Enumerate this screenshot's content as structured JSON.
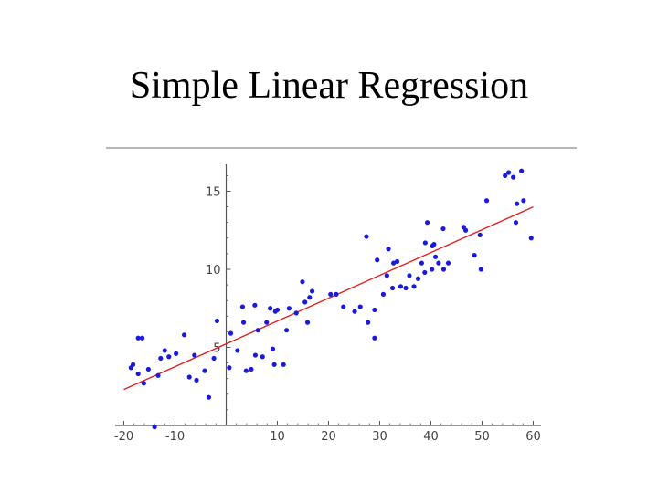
{
  "slide": {
    "title": "Simple Linear Regression"
  },
  "chart_data": {
    "type": "scatter",
    "title": "",
    "xlabel": "",
    "ylabel": "",
    "xlim": [
      -20,
      60
    ],
    "ylim": [
      0,
      16.5
    ],
    "xticks": [
      -20,
      -10,
      10,
      20,
      30,
      40,
      50,
      60
    ],
    "yticks": [
      5,
      10,
      15
    ],
    "grid": false,
    "colors": {
      "points": "#1a1adb",
      "fit": "#e02020",
      "axes": "#555555"
    },
    "series": [
      {
        "type": "scatter",
        "points": [
          [
            -18.2,
            3.9
          ],
          [
            -18.6,
            3.7
          ],
          [
            -17.2,
            3.3
          ],
          [
            -17.2,
            5.6
          ],
          [
            -16.4,
            5.6
          ],
          [
            -16.1,
            2.7
          ],
          [
            -15.2,
            3.6
          ],
          [
            -14.0,
            -0.1
          ],
          [
            -13.3,
            3.2
          ],
          [
            -12.8,
            4.3
          ],
          [
            -12.0,
            4.8
          ],
          [
            -11.2,
            4.4
          ],
          [
            -9.8,
            4.6
          ],
          [
            -8.2,
            5.8
          ],
          [
            -7.2,
            3.1
          ],
          [
            -6.2,
            4.5
          ],
          [
            -5.8,
            2.9
          ],
          [
            -4.2,
            3.5
          ],
          [
            -3.4,
            1.8
          ],
          [
            -2.4,
            4.3
          ],
          [
            -1.8,
            6.7
          ],
          [
            0.6,
            3.7
          ],
          [
            0.9,
            5.9
          ],
          [
            2.2,
            4.8
          ],
          [
            3.2,
            7.6
          ],
          [
            3.4,
            6.6
          ],
          [
            3.9,
            3.5
          ],
          [
            4.9,
            3.6
          ],
          [
            5.7,
            4.5
          ],
          [
            5.6,
            7.7
          ],
          [
            6.2,
            6.1
          ],
          [
            7.1,
            4.4
          ],
          [
            7.9,
            6.6
          ],
          [
            8.6,
            7.5
          ],
          [
            9.1,
            4.9
          ],
          [
            9.4,
            3.9
          ],
          [
            9.6,
            7.3
          ],
          [
            10.0,
            7.4
          ],
          [
            11.2,
            3.9
          ],
          [
            11.8,
            6.1
          ],
          [
            12.3,
            7.5
          ],
          [
            13.7,
            7.2
          ],
          [
            14.9,
            9.2
          ],
          [
            15.4,
            7.9
          ],
          [
            15.9,
            6.6
          ],
          [
            16.8,
            8.6
          ],
          [
            16.3,
            8.2
          ],
          [
            20.4,
            8.4
          ],
          [
            21.5,
            8.4
          ],
          [
            22.9,
            7.6
          ],
          [
            25.1,
            7.3
          ],
          [
            26.2,
            7.6
          ],
          [
            27.4,
            12.1
          ],
          [
            27.7,
            6.6
          ],
          [
            29.0,
            5.6
          ],
          [
            29.5,
            10.6
          ],
          [
            29.0,
            7.4
          ],
          [
            30.7,
            8.4
          ],
          [
            31.4,
            9.6
          ],
          [
            31.7,
            11.3
          ],
          [
            32.7,
            10.4
          ],
          [
            32.5,
            8.8
          ],
          [
            33.4,
            10.5
          ],
          [
            34.1,
            8.9
          ],
          [
            35.1,
            8.8
          ],
          [
            35.8,
            9.6
          ],
          [
            36.7,
            8.9
          ],
          [
            37.5,
            9.4
          ],
          [
            38.2,
            10.4
          ],
          [
            38.8,
            9.8
          ],
          [
            38.9,
            11.7
          ],
          [
            39.3,
            13.0
          ],
          [
            40.2,
            10.0
          ],
          [
            40.6,
            11.6
          ],
          [
            40.3,
            11.5
          ],
          [
            40.9,
            10.8
          ],
          [
            41.5,
            10.4
          ],
          [
            42.4,
            12.6
          ],
          [
            42.5,
            10.0
          ],
          [
            43.4,
            10.4
          ],
          [
            46.8,
            12.5
          ],
          [
            46.4,
            12.7
          ],
          [
            48.5,
            10.9
          ],
          [
            49.6,
            12.2
          ],
          [
            49.8,
            10.0
          ],
          [
            50.9,
            14.4
          ],
          [
            54.5,
            16.0
          ],
          [
            55.2,
            16.2
          ],
          [
            56.1,
            15.9
          ],
          [
            56.6,
            13.0
          ],
          [
            56.8,
            14.2
          ],
          [
            57.7,
            16.3
          ],
          [
            58.1,
            14.4
          ],
          [
            59.6,
            12.0
          ]
        ]
      },
      {
        "type": "line",
        "points": [
          [
            -20,
            2.3
          ],
          [
            60,
            14.0
          ]
        ]
      }
    ]
  }
}
